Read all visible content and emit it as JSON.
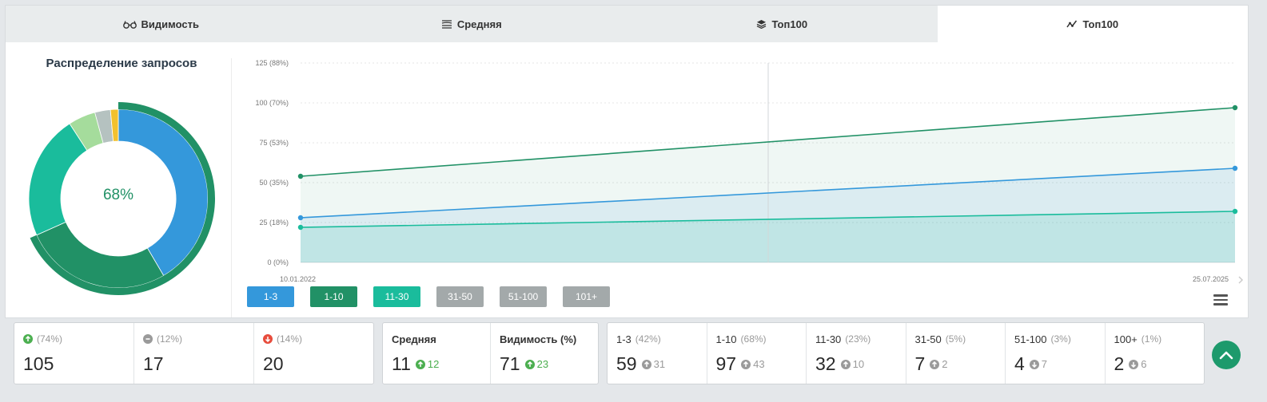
{
  "tabs": [
    {
      "label": "Видимость",
      "icon": "glasses-icon",
      "active": false
    },
    {
      "label": "Средняя",
      "icon": "layers-lines-icon",
      "active": false
    },
    {
      "label": "Топ100",
      "icon": "stack-icon",
      "active": false
    },
    {
      "label": "Топ100",
      "icon": "line-chart-icon",
      "active": true
    }
  ],
  "donut": {
    "title": "Распределение запросов",
    "center_label": "68%",
    "segments": [
      {
        "value": 59,
        "color": "#3498db"
      },
      {
        "value": 38,
        "color": "#219166"
      },
      {
        "value": 32,
        "color": "#1abc9c"
      },
      {
        "value": 7,
        "color": "#a5dc9c"
      },
      {
        "value": 4,
        "color": "#b5c2c0"
      },
      {
        "value": 2,
        "color": "#f2c12e"
      }
    ],
    "outer_ring": {
      "value": 97,
      "of": 142,
      "color": "#219166"
    }
  },
  "chart_data": {
    "type": "area",
    "x": [
      "10.01.2022",
      "25.07.2025"
    ],
    "y_ticks": [
      "0 (0%)",
      "25 (18%)",
      "50 (35%)",
      "75 (53%)",
      "100 (70%)",
      "125 (88%)"
    ],
    "ylim": [
      0,
      125
    ],
    "series": [
      {
        "name": "1-10",
        "color": "#219166",
        "values": [
          54,
          97
        ]
      },
      {
        "name": "1-3",
        "color": "#3498db",
        "values": [
          28,
          59
        ]
      },
      {
        "name": "11-30",
        "color": "#1abc9c",
        "values": [
          22,
          32
        ]
      }
    ]
  },
  "legend": [
    {
      "label": "1-3",
      "color": "#3498db"
    },
    {
      "label": "1-10",
      "color": "#219166"
    },
    {
      "label": "11-30",
      "color": "#1abc9c"
    },
    {
      "label": "31-50",
      "color": "#a3a9aa"
    },
    {
      "label": "51-100",
      "color": "#a3a9aa"
    },
    {
      "label": "101+",
      "color": "#a3a9aa"
    }
  ],
  "stats_change": [
    {
      "icon": "arrow-up-circle-icon",
      "color": "#4caf50",
      "pct": "(74%)",
      "value": "105"
    },
    {
      "icon": "minus-circle-icon",
      "color": "#9a9a9a",
      "pct": "(12%)",
      "value": "17"
    },
    {
      "icon": "arrow-down-circle-icon",
      "color": "#e74c3c",
      "pct": "(14%)",
      "value": "20"
    }
  ],
  "stats_avg": [
    {
      "label": "Средняя",
      "value": "11",
      "delta": "12"
    },
    {
      "label": "Видимость (%)",
      "value": "71",
      "delta": "23"
    }
  ],
  "stats_ranges": [
    {
      "label": "1-3",
      "pct": "(42%)",
      "value": "59",
      "delta": "31",
      "dir": "up"
    },
    {
      "label": "1-10",
      "pct": "(68%)",
      "value": "97",
      "delta": "43",
      "dir": "up"
    },
    {
      "label": "11-30",
      "pct": "(23%)",
      "value": "32",
      "delta": "10",
      "dir": "up"
    },
    {
      "label": "31-50",
      "pct": "(5%)",
      "value": "7",
      "delta": "2",
      "dir": "up"
    },
    {
      "label": "51-100",
      "pct": "(3%)",
      "value": "4",
      "delta": "7",
      "dir": "down"
    },
    {
      "label": "100+",
      "pct": "(1%)",
      "value": "2",
      "delta": "6",
      "dir": "down"
    }
  ]
}
